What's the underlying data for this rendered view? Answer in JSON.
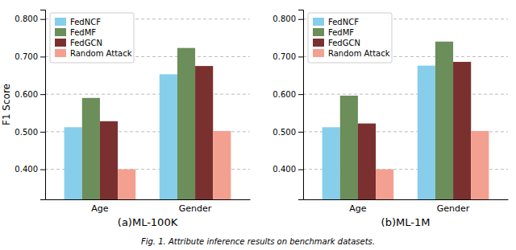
{
  "chart_data": [
    {
      "type": "bar",
      "xlabel": "(a)ML-100K",
      "ylabel": "F1 Score",
      "categories": [
        "Age",
        "Gender"
      ],
      "series": [
        {
          "name": "FedNCF",
          "color": "#87CEEB",
          "values": [
            0.512,
            0.653
          ]
        },
        {
          "name": "FedMF",
          "color": "#6B8E5A",
          "values": [
            0.59,
            0.723
          ]
        },
        {
          "name": "FedGCN",
          "color": "#7B3030",
          "values": [
            0.528,
            0.675
          ]
        },
        {
          "name": "Random Attack",
          "color": "#F4A090",
          "values": [
            0.4,
            0.502
          ]
        }
      ],
      "ylim": [
        0.32,
        0.825
      ],
      "yticks": [
        {
          "value": 0.4,
          "label": "0.400"
        },
        {
          "value": 0.5,
          "label": "0.500"
        },
        {
          "value": 0.6,
          "label": "0.600"
        },
        {
          "value": 0.7,
          "label": "0.700"
        },
        {
          "value": 0.8,
          "label": "0.800"
        }
      ],
      "grid": true,
      "legend": "top-left"
    },
    {
      "type": "bar",
      "xlabel": "(b)ML-1M",
      "categories": [
        "Age",
        "Gender"
      ],
      "series": [
        {
          "name": "FedNCF",
          "color": "#87CEEB",
          "values": [
            0.512,
            0.676
          ]
        },
        {
          "name": "FedMF",
          "color": "#6B8E5A",
          "values": [
            0.596,
            0.74
          ]
        },
        {
          "name": "FedGCN",
          "color": "#7B3030",
          "values": [
            0.522,
            0.686
          ]
        },
        {
          "name": "Random Attack",
          "color": "#F4A090",
          "values": [
            0.4,
            0.502
          ]
        }
      ],
      "ylim": [
        0.32,
        0.825
      ],
      "yticks": [
        {
          "value": 0.4,
          "label": "0.400"
        },
        {
          "value": 0.5,
          "label": "0.500"
        },
        {
          "value": 0.6,
          "label": "0.600"
        },
        {
          "value": 0.7,
          "label": "0.700"
        },
        {
          "value": 0.8,
          "label": "0.800"
        }
      ],
      "grid": true,
      "legend": "top-left"
    }
  ],
  "caption": "Fig. 1. Attribute inference results on benchmark datasets."
}
